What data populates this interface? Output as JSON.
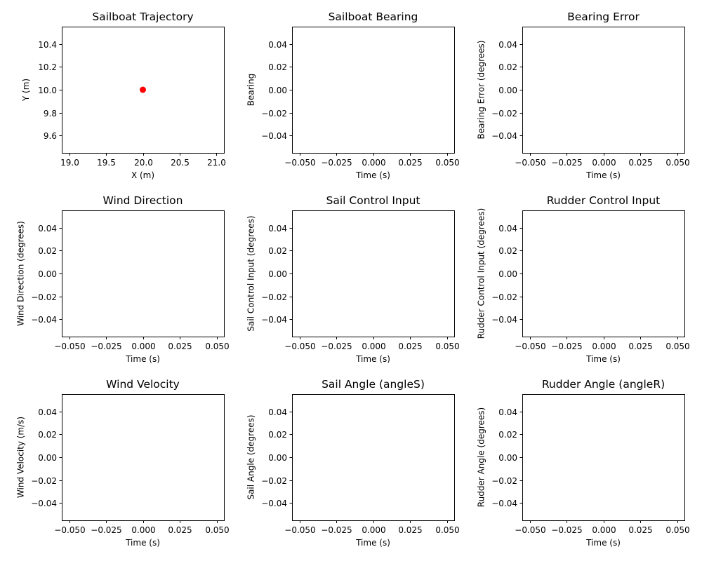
{
  "chart_data": [
    {
      "type": "scatter",
      "title": "Sailboat Trajectory",
      "xlabel": "X (m)",
      "ylabel": "Y (m)",
      "xlim": [
        18.9,
        21.1
      ],
      "ylim": [
        9.45,
        10.55
      ],
      "xticks": [
        19.0,
        19.5,
        20.0,
        20.5,
        21.0
      ],
      "xtick_labels": [
        "19.0",
        "19.5",
        "20.0",
        "20.5",
        "21.0"
      ],
      "yticks": [
        9.6,
        9.8,
        10.0,
        10.2,
        10.4
      ],
      "ytick_labels": [
        "9.6",
        "9.8",
        "10.0",
        "10.2",
        "10.4"
      ],
      "points": [
        {
          "x": 20.0,
          "y": 10.0,
          "color": "#ff0000"
        }
      ]
    },
    {
      "type": "line",
      "title": "Sailboat Bearing",
      "xlabel": "Time (s)",
      "ylabel": "Bearing",
      "xlim": [
        -0.055,
        0.055
      ],
      "ylim": [
        -0.055,
        0.055
      ],
      "xticks": [
        -0.05,
        -0.025,
        0.0,
        0.025,
        0.05
      ],
      "xtick_labels": [
        "−0.050",
        "−0.025",
        "0.000",
        "0.025",
        "0.050"
      ],
      "yticks": [
        -0.04,
        -0.02,
        0.0,
        0.02,
        0.04
      ],
      "ytick_labels": [
        "−0.04",
        "−0.02",
        "0.00",
        "0.02",
        "0.04"
      ],
      "points": []
    },
    {
      "type": "line",
      "title": "Bearing Error",
      "xlabel": "Time (s)",
      "ylabel": "Bearing Error (degrees)",
      "xlim": [
        -0.055,
        0.055
      ],
      "ylim": [
        -0.055,
        0.055
      ],
      "xticks": [
        -0.05,
        -0.025,
        0.0,
        0.025,
        0.05
      ],
      "xtick_labels": [
        "−0.050",
        "−0.025",
        "0.000",
        "0.025",
        "0.050"
      ],
      "yticks": [
        -0.04,
        -0.02,
        0.0,
        0.02,
        0.04
      ],
      "ytick_labels": [
        "−0.04",
        "−0.02",
        "0.00",
        "0.02",
        "0.04"
      ],
      "points": []
    },
    {
      "type": "line",
      "title": "Wind Direction",
      "xlabel": "Time (s)",
      "ylabel": "Wind Direction (degrees)",
      "xlim": [
        -0.055,
        0.055
      ],
      "ylim": [
        -0.055,
        0.055
      ],
      "xticks": [
        -0.05,
        -0.025,
        0.0,
        0.025,
        0.05
      ],
      "xtick_labels": [
        "−0.050",
        "−0.025",
        "0.000",
        "0.025",
        "0.050"
      ],
      "yticks": [
        -0.04,
        -0.02,
        0.0,
        0.02,
        0.04
      ],
      "ytick_labels": [
        "−0.04",
        "−0.02",
        "0.00",
        "0.02",
        "0.04"
      ],
      "points": []
    },
    {
      "type": "line",
      "title": "Sail Control Input",
      "xlabel": "Time (s)",
      "ylabel": "Sail Control Input (degrees)",
      "xlim": [
        -0.055,
        0.055
      ],
      "ylim": [
        -0.055,
        0.055
      ],
      "xticks": [
        -0.05,
        -0.025,
        0.0,
        0.025,
        0.05
      ],
      "xtick_labels": [
        "−0.050",
        "−0.025",
        "0.000",
        "0.025",
        "0.050"
      ],
      "yticks": [
        -0.04,
        -0.02,
        0.0,
        0.02,
        0.04
      ],
      "ytick_labels": [
        "−0.04",
        "−0.02",
        "0.00",
        "0.02",
        "0.04"
      ],
      "points": []
    },
    {
      "type": "line",
      "title": "Rudder Control Input",
      "xlabel": "Time (s)",
      "ylabel": "Rudder Control Input (degrees)",
      "xlim": [
        -0.055,
        0.055
      ],
      "ylim": [
        -0.055,
        0.055
      ],
      "xticks": [
        -0.05,
        -0.025,
        0.0,
        0.025,
        0.05
      ],
      "xtick_labels": [
        "−0.050",
        "−0.025",
        "0.000",
        "0.025",
        "0.050"
      ],
      "yticks": [
        -0.04,
        -0.02,
        0.0,
        0.02,
        0.04
      ],
      "ytick_labels": [
        "−0.04",
        "−0.02",
        "0.00",
        "0.02",
        "0.04"
      ],
      "points": []
    },
    {
      "type": "line",
      "title": "Wind Velocity",
      "xlabel": "Time (s)",
      "ylabel": "Wind Velocity (m/s)",
      "xlim": [
        -0.055,
        0.055
      ],
      "ylim": [
        -0.055,
        0.055
      ],
      "xticks": [
        -0.05,
        -0.025,
        0.0,
        0.025,
        0.05
      ],
      "xtick_labels": [
        "−0.050",
        "−0.025",
        "0.000",
        "0.025",
        "0.050"
      ],
      "yticks": [
        -0.04,
        -0.02,
        0.0,
        0.02,
        0.04
      ],
      "ytick_labels": [
        "−0.04",
        "−0.02",
        "0.00",
        "0.02",
        "0.04"
      ],
      "points": []
    },
    {
      "type": "line",
      "title": "Sail Angle (angleS)",
      "xlabel": "Time (s)",
      "ylabel": "Sail Angle (degrees)",
      "xlim": [
        -0.055,
        0.055
      ],
      "ylim": [
        -0.055,
        0.055
      ],
      "xticks": [
        -0.05,
        -0.025,
        0.0,
        0.025,
        0.05
      ],
      "xtick_labels": [
        "−0.050",
        "−0.025",
        "0.000",
        "0.025",
        "0.050"
      ],
      "yticks": [
        -0.04,
        -0.02,
        0.0,
        0.02,
        0.04
      ],
      "ytick_labels": [
        "−0.04",
        "−0.02",
        "0.00",
        "0.02",
        "0.04"
      ],
      "points": []
    },
    {
      "type": "line",
      "title": "Rudder Angle (angleR)",
      "xlabel": "Time (s)",
      "ylabel": "Rudder Angle (degrees)",
      "xlim": [
        -0.055,
        0.055
      ],
      "ylim": [
        -0.055,
        0.055
      ],
      "xticks": [
        -0.05,
        -0.025,
        0.0,
        0.025,
        0.05
      ],
      "xtick_labels": [
        "−0.050",
        "−0.025",
        "0.000",
        "0.025",
        "0.050"
      ],
      "yticks": [
        -0.04,
        -0.02,
        0.0,
        0.02,
        0.04
      ],
      "ytick_labels": [
        "−0.04",
        "−0.02",
        "0.00",
        "0.02",
        "0.04"
      ],
      "points": []
    }
  ]
}
